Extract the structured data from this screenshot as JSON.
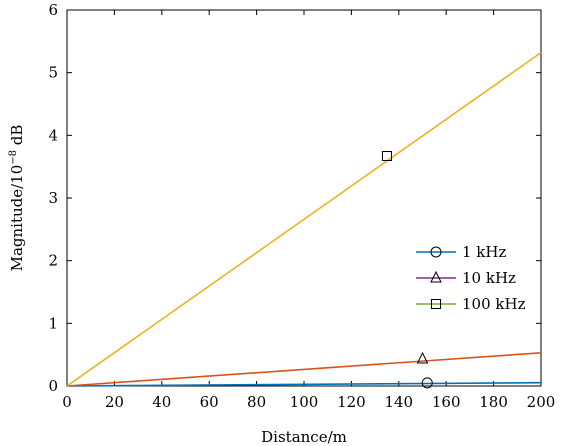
{
  "chart_data": {
    "type": "line",
    "title": "",
    "xlabel": "Distance/m",
    "ylabel_prefix": "Magnitude/10",
    "ylabel_exp": "−8",
    "ylabel_suffix": " dB",
    "xlim": [
      0,
      200
    ],
    "ylim": [
      0,
      6
    ],
    "x_ticks": [
      0,
      20,
      40,
      60,
      80,
      100,
      120,
      140,
      160,
      180,
      200
    ],
    "y_ticks": [
      0,
      1,
      2,
      3,
      4,
      5,
      6
    ],
    "grid": false,
    "legend_position": "right",
    "series": [
      {
        "name": "1 kHz",
        "color": "#0072bd",
        "legend_color": "#0072bd",
        "marker": "circle",
        "points": [
          [
            0,
            0
          ],
          [
            200,
            0.053
          ]
        ],
        "marker_point": [
          152,
          0.05
        ]
      },
      {
        "name": "10 kHz",
        "color": "#d95319",
        "legend_color": "#7e2f8e",
        "marker": "triangle",
        "points": [
          [
            0,
            0
          ],
          [
            200,
            0.53
          ]
        ],
        "marker_point": [
          150,
          0.43
        ]
      },
      {
        "name": "100 kHz",
        "color": "#edb120",
        "legend_color": "#77ac30",
        "marker": "square",
        "points": [
          [
            0,
            0
          ],
          [
            200,
            5.32
          ]
        ],
        "marker_point": [
          135,
          3.67
        ]
      }
    ]
  }
}
